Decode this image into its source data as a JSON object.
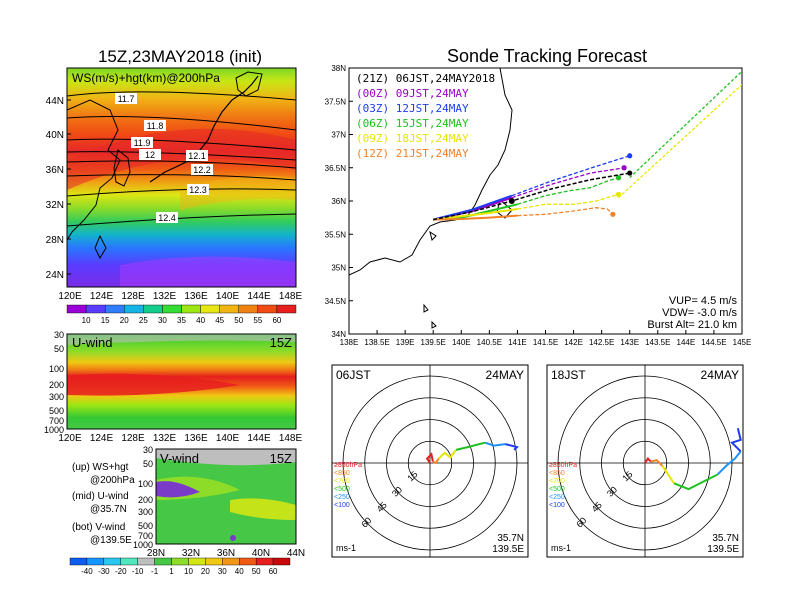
{
  "titles": {
    "left": "15Z,23MAY2018 (init)",
    "right": "Sonde Tracking Forecast"
  },
  "map_panel": {
    "label": "WS(m/s)+hgt(km)@200hPa",
    "lat_ticks": [
      "44N",
      "40N",
      "36N",
      "32N",
      "28N",
      "24N"
    ],
    "lon_ticks": [
      "120E",
      "124E",
      "128E",
      "132E",
      "136E",
      "140E",
      "144E",
      "148E"
    ],
    "contour_labels": [
      "11.7",
      "11.8",
      "11.9",
      "12",
      "12.1",
      "12.2",
      "12.3",
      "12.4"
    ]
  },
  "ws_colorbar": {
    "labels": [
      "10",
      "15",
      "20",
      "25",
      "30",
      "35",
      "40",
      "45",
      "50",
      "55",
      "60"
    ],
    "colors": [
      "#9a00d8",
      "#5a3cff",
      "#2f7cff",
      "#16b4e6",
      "#14cc8c",
      "#34dc34",
      "#9ce614",
      "#e6e614",
      "#f0b414",
      "#f08214",
      "#f04b14",
      "#e61e1e"
    ]
  },
  "uwind_panel": {
    "label": "U-wind",
    "time": "15Z",
    "p_ticks": [
      "30",
      "50",
      "100",
      "200",
      "300",
      "500",
      "700",
      "1000"
    ],
    "lon_ticks": [
      "120E",
      "124E",
      "128E",
      "132E",
      "136E",
      "140E",
      "144E",
      "148E"
    ]
  },
  "vwind_panel": {
    "label": "V-wind",
    "time": "15Z",
    "p_ticks": [
      "30",
      "50",
      "100",
      "200",
      "300",
      "500",
      "700",
      "1000"
    ],
    "lat_ticks": [
      "28N",
      "32N",
      "36N",
      "40N",
      "44N"
    ]
  },
  "legend_notes": [
    [
      "(up) WS+hgt",
      "@200hPa"
    ],
    [
      "(mid) U-wind",
      "@35.7N"
    ],
    [
      "(bot) V-wind",
      "@139.5E"
    ]
  ],
  "wind_colorbar": {
    "labels": [
      "-40",
      "-30",
      "-20",
      "-10",
      "-1",
      "1",
      "10",
      "20",
      "30",
      "40",
      "50",
      "60"
    ],
    "colors": [
      "#0c5cf0",
      "#1496ff",
      "#28c8f0",
      "#50e6be",
      "#bebebe",
      "#46c846",
      "#8cdc28",
      "#d2e614",
      "#f0c814",
      "#f09614",
      "#f05a14",
      "#e61e1e",
      "#c80a0a"
    ]
  },
  "chart_data": {
    "type": "line",
    "title": "Sonde Tracking Forecast",
    "xlim": [
      138,
      145
    ],
    "ylim": [
      34,
      38
    ],
    "x_ticks": [
      "138E",
      "138.5E",
      "139E",
      "139.5E",
      "140E",
      "140.5E",
      "141E",
      "141.5E",
      "142E",
      "142.5E",
      "143E",
      "143.5E",
      "144E",
      "144.5E",
      "145E"
    ],
    "y_ticks": [
      "34N",
      "34.5N",
      "35N",
      "35.5N",
      "36N",
      "36.5N",
      "37N",
      "37.5N",
      "38N"
    ],
    "launch_time": "(21Z) 06JST,24MAY2018",
    "series": [
      {
        "name": "(00Z) 09JST,24MAY",
        "color": "#9a00c8",
        "x": [
          139.5,
          140.2,
          140.9,
          141.6,
          142.3,
          142.9
        ],
        "y": [
          35.72,
          35.85,
          36.05,
          36.25,
          36.42,
          36.5
        ]
      },
      {
        "name": "(03Z) 12JST,24MAY",
        "color": "#1e3cf0",
        "x": [
          139.5,
          140.2,
          140.9,
          141.6,
          142.4,
          143.0
        ],
        "y": [
          35.72,
          35.87,
          36.08,
          36.3,
          36.52,
          36.68
        ]
      },
      {
        "name": "(06Z) 15JST,24MAY",
        "color": "#20c020",
        "x": [
          139.5,
          140.0,
          140.5,
          141.0,
          141.5,
          141.9,
          142.3,
          142.6,
          142.8
        ],
        "y": [
          35.72,
          35.75,
          35.85,
          35.95,
          36.08,
          36.15,
          36.2,
          36.3,
          36.35
        ]
      },
      {
        "name": "(09Z) 18JST,24MAY",
        "color": "#e6e600",
        "x": [
          139.5,
          140.0,
          140.5,
          141.0,
          141.5,
          142.0,
          142.4,
          142.8
        ],
        "y": [
          35.72,
          35.77,
          35.82,
          35.88,
          35.95,
          35.95,
          36.0,
          36.1
        ]
      },
      {
        "name": "(12Z) 21JST,24MAY",
        "color": "#f08228",
        "x": [
          139.5,
          140.0,
          140.5,
          141.0,
          141.5,
          142.0,
          142.4,
          142.6,
          142.7
        ],
        "y": [
          35.72,
          35.73,
          35.75,
          35.78,
          35.8,
          35.85,
          35.9,
          35.88,
          35.8
        ]
      }
    ],
    "reference_track": {
      "color": "#000000",
      "x": [
        139.5,
        140.2,
        140.9,
        141.6,
        142.3,
        143.0
      ],
      "y": [
        35.72,
        35.84,
        36.0,
        36.18,
        36.32,
        36.42
      ]
    },
    "far_tracks": [
      {
        "color": "#20c020",
        "x": [
          143.0,
          145.0
        ],
        "y": [
          36.35,
          37.95
        ]
      },
      {
        "color": "#e6e600",
        "x": [
          142.8,
          145.0
        ],
        "y": [
          36.05,
          37.75
        ]
      }
    ],
    "params": [
      "VUP= 4.5 m/s",
      "VDW= -3.0 m/s",
      "Burst Alt= 21.0 km"
    ]
  },
  "hodographs": [
    {
      "time": "06JST",
      "date": "24MAY",
      "lat": "35.7N",
      "lon": "139.5E",
      "unit": "ms-1",
      "ring_labels": [
        "15",
        "30",
        "45",
        "60"
      ],
      "p_legend": [
        "≥850hPa",
        "<850",
        "<700",
        "<500",
        "<250",
        "<100"
      ],
      "p_colors": [
        "#e61e1e",
        "#f08228",
        "#e6e600",
        "#20c020",
        "#1e90f0",
        "#1e3cf0"
      ],
      "segments": [
        {
          "color": "#e61e1e",
          "u": [
            0,
            -2,
            1,
            2
          ],
          "v": [
            0,
            3,
            6,
            1
          ]
        },
        {
          "color": "#f08228",
          "u": [
            2,
            4,
            6
          ],
          "v": [
            1,
            0,
            3
          ]
        },
        {
          "color": "#e6e600",
          "u": [
            6,
            10,
            14,
            18
          ],
          "v": [
            3,
            7,
            4,
            9
          ]
        },
        {
          "color": "#20c020",
          "u": [
            18,
            26,
            34,
            38
          ],
          "v": [
            9,
            11,
            13,
            14
          ]
        },
        {
          "color": "#1e90f0",
          "u": [
            38,
            44,
            52
          ],
          "v": [
            14,
            12,
            13
          ]
        },
        {
          "color": "#1e3cf0",
          "u": [
            52,
            60,
            58
          ],
          "v": [
            13,
            11,
            9
          ]
        }
      ]
    },
    {
      "time": "18JST",
      "date": "24MAY",
      "lat": "35.7N",
      "lon": "139.5E",
      "unit": "ms-1",
      "ring_labels": [
        "15",
        "30",
        "45",
        "60"
      ],
      "p_legend": [
        "≥850hPa",
        "<850",
        "<700",
        "<500",
        "<250",
        "<100"
      ],
      "p_colors": [
        "#e61e1e",
        "#f08228",
        "#e6e600",
        "#20c020",
        "#1e90f0",
        "#1e3cf0"
      ],
      "segments": [
        {
          "color": "#e61e1e",
          "u": [
            0,
            2,
            4
          ],
          "v": [
            0,
            3,
            1
          ]
        },
        {
          "color": "#f08228",
          "u": [
            4,
            8,
            12
          ],
          "v": [
            1,
            2,
            -2
          ]
        },
        {
          "color": "#e6e600",
          "u": [
            12,
            16,
            20
          ],
          "v": [
            -2,
            -8,
            -14
          ]
        },
        {
          "color": "#20c020",
          "u": [
            20,
            30,
            42,
            50
          ],
          "v": [
            -14,
            -18,
            -12,
            -8
          ]
        },
        {
          "color": "#1e90f0",
          "u": [
            50,
            56,
            62,
            66
          ],
          "v": [
            -8,
            -2,
            3,
            8
          ]
        },
        {
          "color": "#1e3cf0",
          "u": [
            66,
            60,
            66,
            64
          ],
          "v": [
            8,
            14,
            16,
            24
          ]
        }
      ]
    }
  ]
}
